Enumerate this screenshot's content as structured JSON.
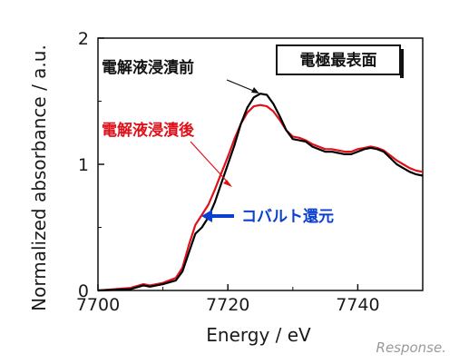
{
  "chart_data": {
    "type": "line",
    "xlabel": "Energy / eV",
    "ylabel": "Normalized absorbance / a.u.",
    "xlim": [
      7700,
      7750
    ],
    "ylim": [
      0,
      2
    ],
    "x_ticks": [
      "7700",
      "7720",
      "7740"
    ],
    "x_tick_values": [
      7700,
      7720,
      7740
    ],
    "y_ticks": [
      "0",
      "1",
      "2"
    ],
    "y_tick_values": [
      0,
      1,
      2
    ],
    "grid": false,
    "series": [
      {
        "name": "電解液浸漬前",
        "color": "#000000",
        "points": [
          [
            7700,
            0.0
          ],
          [
            7705,
            0.01
          ],
          [
            7707,
            0.04
          ],
          [
            7708,
            0.03
          ],
          [
            7710,
            0.05
          ],
          [
            7712,
            0.08
          ],
          [
            7713,
            0.15
          ],
          [
            7714,
            0.3
          ],
          [
            7715,
            0.45
          ],
          [
            7716,
            0.5
          ],
          [
            7717,
            0.58
          ],
          [
            7718,
            0.7
          ],
          [
            7719,
            0.85
          ],
          [
            7720,
            1.0
          ],
          [
            7721,
            1.15
          ],
          [
            7722,
            1.32
          ],
          [
            7723,
            1.45
          ],
          [
            7724,
            1.53
          ],
          [
            7725,
            1.56
          ],
          [
            7726,
            1.55
          ],
          [
            7727,
            1.48
          ],
          [
            7728,
            1.38
          ],
          [
            7729,
            1.27
          ],
          [
            7730,
            1.2
          ],
          [
            7731,
            1.19
          ],
          [
            7732,
            1.18
          ],
          [
            7733,
            1.14
          ],
          [
            7734,
            1.12
          ],
          [
            7735,
            1.1
          ],
          [
            7736,
            1.1
          ],
          [
            7737,
            1.09
          ],
          [
            7738,
            1.08
          ],
          [
            7739,
            1.08
          ],
          [
            7740,
            1.1
          ],
          [
            7741,
            1.12
          ],
          [
            7742,
            1.13
          ],
          [
            7743,
            1.12
          ],
          [
            7744,
            1.1
          ],
          [
            7745,
            1.05
          ],
          [
            7746,
            1.0
          ],
          [
            7747,
            0.97
          ],
          [
            7748,
            0.94
          ],
          [
            7749,
            0.92
          ],
          [
            7750,
            0.91
          ]
        ]
      },
      {
        "name": "電解液浸漬後",
        "color": "#e0101a",
        "points": [
          [
            7700,
            0.0
          ],
          [
            7705,
            0.02
          ],
          [
            7707,
            0.05
          ],
          [
            7708,
            0.04
          ],
          [
            7710,
            0.06
          ],
          [
            7712,
            0.1
          ],
          [
            7713,
            0.18
          ],
          [
            7714,
            0.36
          ],
          [
            7715,
            0.52
          ],
          [
            7716,
            0.6
          ],
          [
            7717,
            0.68
          ],
          [
            7718,
            0.8
          ],
          [
            7719,
            0.93
          ],
          [
            7720,
            1.06
          ],
          [
            7721,
            1.2
          ],
          [
            7722,
            1.32
          ],
          [
            7723,
            1.41
          ],
          [
            7724,
            1.46
          ],
          [
            7725,
            1.47
          ],
          [
            7726,
            1.46
          ],
          [
            7727,
            1.42
          ],
          [
            7728,
            1.35
          ],
          [
            7729,
            1.27
          ],
          [
            7730,
            1.22
          ],
          [
            7731,
            1.21
          ],
          [
            7732,
            1.19
          ],
          [
            7733,
            1.16
          ],
          [
            7734,
            1.14
          ],
          [
            7735,
            1.12
          ],
          [
            7736,
            1.12
          ],
          [
            7737,
            1.11
          ],
          [
            7738,
            1.1
          ],
          [
            7739,
            1.1
          ],
          [
            7740,
            1.12
          ],
          [
            7741,
            1.13
          ],
          [
            7742,
            1.14
          ],
          [
            7743,
            1.13
          ],
          [
            7744,
            1.11
          ],
          [
            7745,
            1.07
          ],
          [
            7746,
            1.03
          ],
          [
            7747,
            1.0
          ],
          [
            7748,
            0.97
          ],
          [
            7749,
            0.95
          ],
          [
            7750,
            0.94
          ]
        ]
      }
    ],
    "annotations": {
      "before_label": "電解液浸漬前",
      "after_label": "電解液浸漬後",
      "cobalt_label": "コバルト還元",
      "box_label": "電極最表面"
    },
    "colors": {
      "before": "#000000",
      "after": "#e0101a",
      "cobalt": "#0a3fd0"
    }
  },
  "watermark": "Response."
}
